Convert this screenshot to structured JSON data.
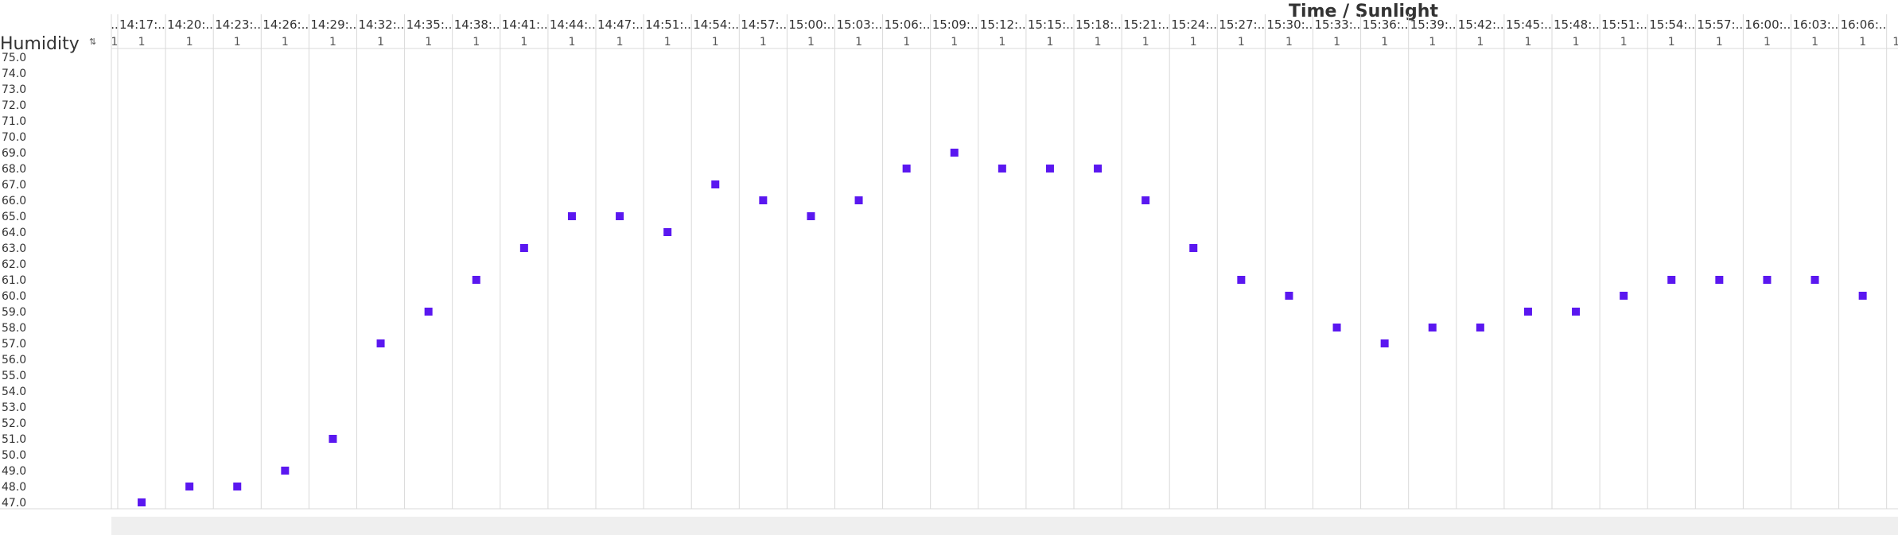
{
  "column_title": "Time / Sunlight",
  "row_title": "Humidity",
  "colors": {
    "marker": "#5a17f0",
    "grid": "#d9d9d9",
    "scrollbar": "#efefef"
  },
  "chart_data": {
    "type": "scatter",
    "title": "Time / Sunlight",
    "ylabel": "Humidity",
    "ylim": [
      47,
      75
    ],
    "y_ticks": [
      "75.0",
      "74.0",
      "73.0",
      "72.0",
      "71.0",
      "70.0",
      "69.0",
      "68.0",
      "67.0",
      "66.0",
      "65.0",
      "64.0",
      "63.0",
      "62.0",
      "61.0",
      "60.0",
      "59.0",
      "58.0",
      "57.0",
      "56.0",
      "55.0",
      "54.0",
      "53.0",
      "52.0",
      "51.0",
      "50.0",
      "49.0",
      "48.0",
      "47.0"
    ],
    "first_column": {
      "label": "..",
      "sunlight": "1"
    },
    "columns": [
      {
        "label": "14:17:..",
        "sunlight": "1",
        "humidity": 47
      },
      {
        "label": "14:20:..",
        "sunlight": "1",
        "humidity": 48
      },
      {
        "label": "14:23:..",
        "sunlight": "1",
        "humidity": 48
      },
      {
        "label": "14:26:..",
        "sunlight": "1",
        "humidity": 49
      },
      {
        "label": "14:29:..",
        "sunlight": "1",
        "humidity": 51
      },
      {
        "label": "14:32:..",
        "sunlight": "1",
        "humidity": 57
      },
      {
        "label": "14:35:..",
        "sunlight": "1",
        "humidity": 59
      },
      {
        "label": "14:38:..",
        "sunlight": "1",
        "humidity": 61
      },
      {
        "label": "14:41:..",
        "sunlight": "1",
        "humidity": 63
      },
      {
        "label": "14:44:..",
        "sunlight": "1",
        "humidity": 65
      },
      {
        "label": "14:47:..",
        "sunlight": "1",
        "humidity": 65
      },
      {
        "label": "14:51:..",
        "sunlight": "1",
        "humidity": 64
      },
      {
        "label": "14:54:..",
        "sunlight": "1",
        "humidity": 67
      },
      {
        "label": "14:57:..",
        "sunlight": "1",
        "humidity": 66
      },
      {
        "label": "15:00:..",
        "sunlight": "1",
        "humidity": 65
      },
      {
        "label": "15:03:..",
        "sunlight": "1",
        "humidity": 66
      },
      {
        "label": "15:06:..",
        "sunlight": "1",
        "humidity": 68
      },
      {
        "label": "15:09:..",
        "sunlight": "1",
        "humidity": 69
      },
      {
        "label": "15:12:..",
        "sunlight": "1",
        "humidity": 68
      },
      {
        "label": "15:15:..",
        "sunlight": "1",
        "humidity": 68
      },
      {
        "label": "15:18:..",
        "sunlight": "1",
        "humidity": 68
      },
      {
        "label": "15:21:..",
        "sunlight": "1",
        "humidity": 66
      },
      {
        "label": "15:24:..",
        "sunlight": "1",
        "humidity": 63
      },
      {
        "label": "15:27:..",
        "sunlight": "1",
        "humidity": 61
      },
      {
        "label": "15:30:..",
        "sunlight": "1",
        "humidity": 60
      },
      {
        "label": "15:33:..",
        "sunlight": "1",
        "humidity": 58
      },
      {
        "label": "15:36:..",
        "sunlight": "1",
        "humidity": 57
      },
      {
        "label": "15:39:..",
        "sunlight": "1",
        "humidity": 58
      },
      {
        "label": "15:42:..",
        "sunlight": "1",
        "humidity": 58
      },
      {
        "label": "15:45:..",
        "sunlight": "1",
        "humidity": 59
      },
      {
        "label": "15:48:..",
        "sunlight": "1",
        "humidity": 59
      },
      {
        "label": "15:51:..",
        "sunlight": "1",
        "humidity": 60
      },
      {
        "label": "15:54:..",
        "sunlight": "1",
        "humidity": 61
      },
      {
        "label": "15:57:..",
        "sunlight": "1",
        "humidity": 61
      },
      {
        "label": "16:00:..",
        "sunlight": "1",
        "humidity": 61
      },
      {
        "label": "16:03:..",
        "sunlight": "1",
        "humidity": 61
      },
      {
        "label": "16:06:..",
        "sunlight": "1",
        "humidity": 60
      }
    ],
    "last_column": {
      "label": "",
      "sunlight": "1"
    },
    "grid": true,
    "legend": "none"
  }
}
